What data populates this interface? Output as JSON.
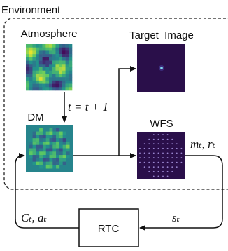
{
  "environment_label": "Environment",
  "nodes": [
    {
      "label": "Atmosphere"
    },
    {
      "label": "Target  Image"
    },
    {
      "label": "DM"
    },
    {
      "label": "WFS"
    },
    {
      "label": "RTC"
    }
  ],
  "edges": [
    {
      "label": "t = t + 1"
    },
    {
      "label": "mₜ, rₜ"
    },
    {
      "label": "sₜ"
    },
    {
      "label": "Cₜ, aₜ"
    }
  ]
}
